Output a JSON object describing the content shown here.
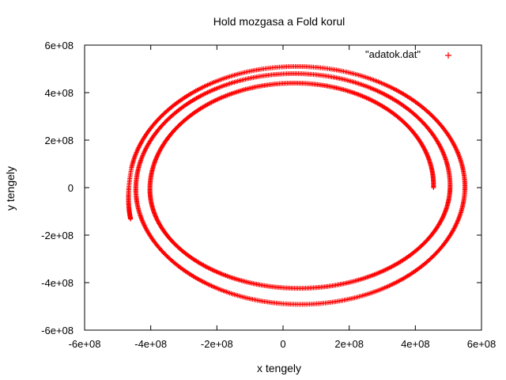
{
  "chart_data": {
    "type": "scatter",
    "title": "Hold mozgasa a Fold korul",
    "xlabel": "x tengely",
    "ylabel": "y tengely",
    "xlim": [
      -600000000,
      600000000
    ],
    "ylim": [
      -600000000,
      600000000
    ],
    "x_ticks": [
      -600000000,
      -400000000,
      -200000000,
      0,
      200000000,
      400000000,
      600000000
    ],
    "x_tick_labels": [
      "-6e+08",
      "-4e+08",
      "-2e+08",
      "0",
      "2e+08",
      "4e+08",
      "6e+08"
    ],
    "y_ticks": [
      -600000000,
      -400000000,
      -200000000,
      0,
      200000000,
      400000000,
      600000000
    ],
    "y_tick_labels": [
      "-6e+08",
      "-4e+08",
      "-2e+08",
      "0",
      "2e+08",
      "4e+08",
      "6e+08"
    ],
    "grid": false,
    "legend_position": "top-right",
    "series": [
      {
        "name": "\"adatok.dat\"",
        "color": "#ff0000",
        "marker": "plus",
        "shape": "expanding spiral",
        "start": [
          405000000,
          0
        ],
        "end": [
          -475000000,
          -115000000
        ],
        "turns": 2.55,
        "center": [
          40000000,
          0
        ],
        "loop_extents": [
          {
            "x": [
              -380000000,
              455000000
            ],
            "y": [
              -390000000,
              430000000
            ]
          },
          {
            "x": [
              -425000000,
              505000000
            ],
            "y": [
              -435000000,
              470000000
            ]
          },
          {
            "x": [
              -465000000,
              550000000
            ],
            "y": [
              -510000000,
              510000000
            ]
          }
        ]
      }
    ]
  }
}
